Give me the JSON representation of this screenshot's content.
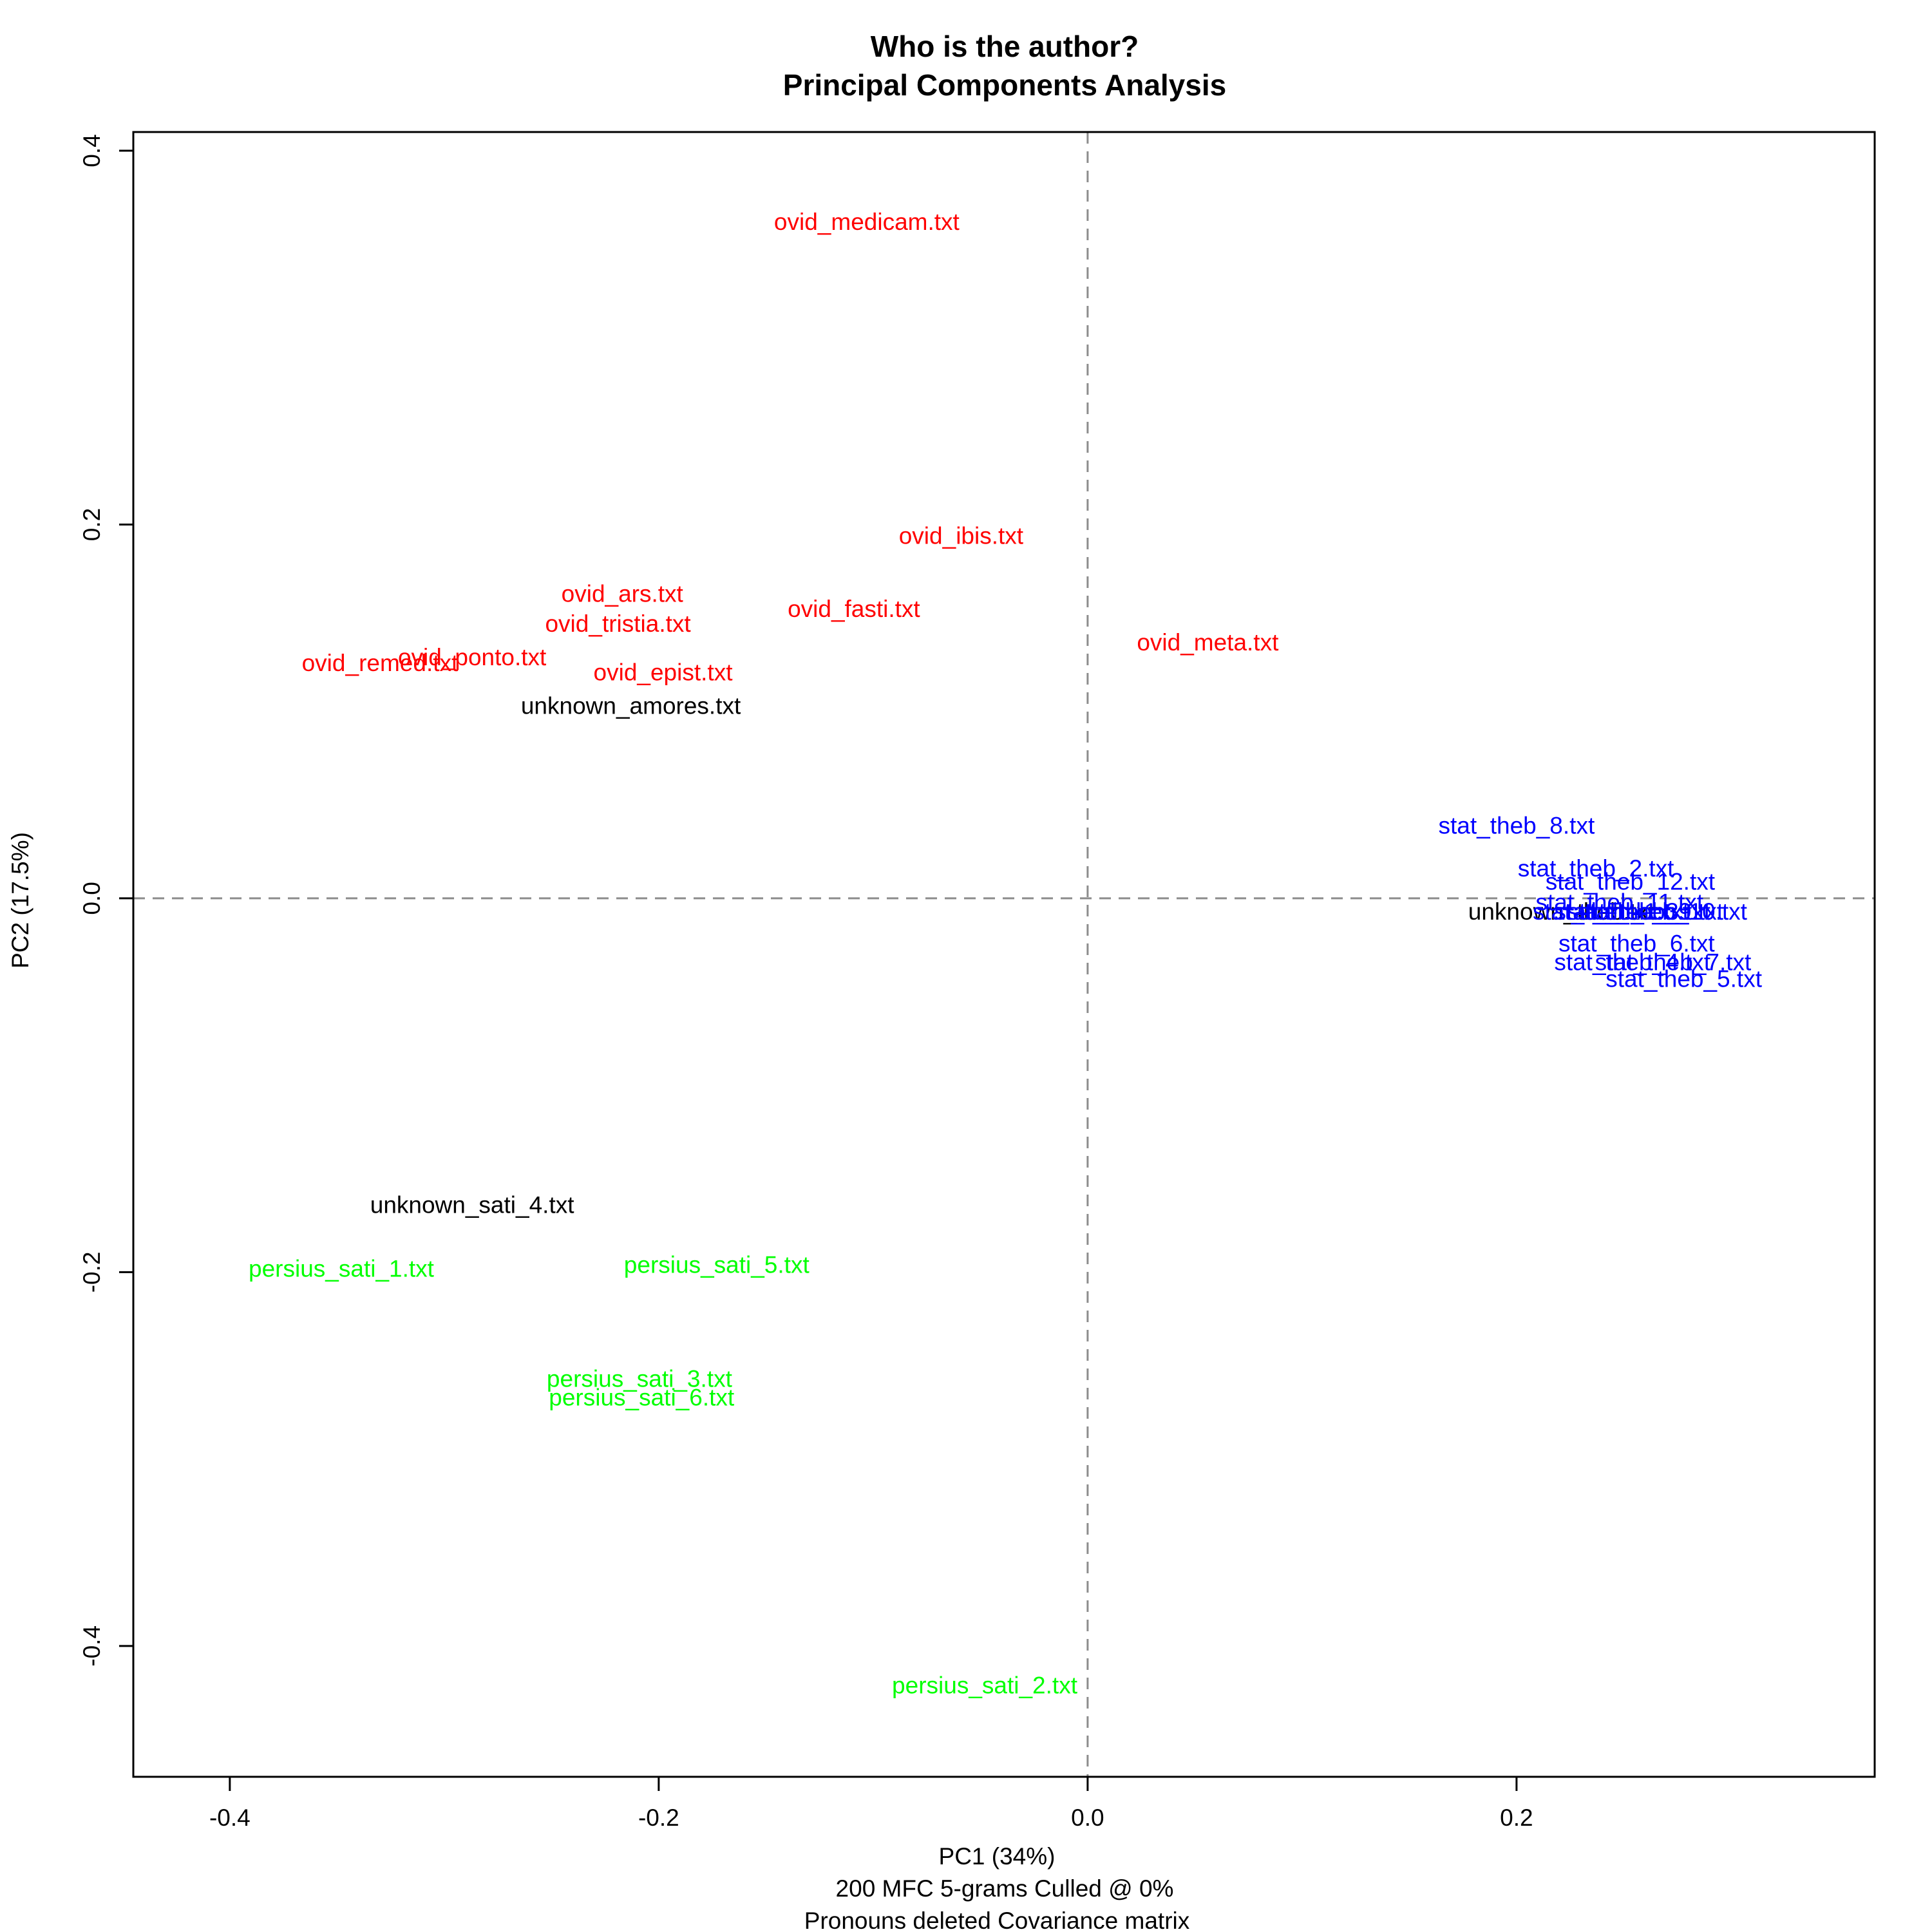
{
  "chart_data": {
    "type": "scatter",
    "title": "Who is the author?",
    "subtitle": "Principal Components Analysis",
    "xlabel": "PC1 (34%)",
    "xlabel_sub1": "200 MFC 5-grams Culled @ 0%",
    "xlabel_sub2": "Pronouns deleted Covariance matrix",
    "ylabel": "PC2 (17.5%)",
    "xlim": [
      -0.445,
      0.367
    ],
    "ylim": [
      -0.47,
      0.41
    ],
    "xticks": [
      {
        "value": -0.4,
        "label": "-0.4"
      },
      {
        "value": -0.2,
        "label": "-0.2"
      },
      {
        "value": 0.0,
        "label": "0.0"
      },
      {
        "value": 0.2,
        "label": "0.2"
      }
    ],
    "yticks": [
      {
        "value": -0.4,
        "label": "-0.4"
      },
      {
        "value": -0.2,
        "label": "-0.2"
      },
      {
        "value": 0.0,
        "label": "0.0"
      },
      {
        "value": 0.2,
        "label": "0.2"
      },
      {
        "value": 0.4,
        "label": "0.4"
      }
    ],
    "reference_lines": {
      "x": 0,
      "y": 0,
      "style": "dashed",
      "color": "#8c8c8c"
    },
    "grid": false,
    "groups": [
      {
        "color": "#ff0000",
        "points": [
          {
            "label": "ovid_medicam.txt",
            "x": -0.103,
            "y": 0.361
          },
          {
            "label": "ovid_ibis.txt",
            "x": -0.059,
            "y": 0.193
          },
          {
            "label": "ovid_ars.txt",
            "x": -0.217,
            "y": 0.162
          },
          {
            "label": "ovid_tristia.txt",
            "x": -0.219,
            "y": 0.146
          },
          {
            "label": "ovid_fasti.txt",
            "x": -0.109,
            "y": 0.154
          },
          {
            "label": "ovid_ponto.txt",
            "x": -0.287,
            "y": 0.128
          },
          {
            "label": "ovid_remed.txt",
            "x": -0.33,
            "y": 0.125
          },
          {
            "label": "ovid_epist.txt",
            "x": -0.198,
            "y": 0.12
          },
          {
            "label": "ovid_meta.txt",
            "x": 0.056,
            "y": 0.136
          }
        ]
      },
      {
        "color": "#000000",
        "points": [
          {
            "label": "unknown_amores.txt",
            "x": -0.213,
            "y": 0.102
          },
          {
            "label": "unknown_sati_4.txt",
            "x": -0.287,
            "y": -0.165
          },
          {
            "label": "unknown_theb.txt",
            "x": 0.221,
            "y": -0.008
          }
        ]
      },
      {
        "color": "#0000ff",
        "points": [
          {
            "label": "stat_theb_8.txt",
            "x": 0.2,
            "y": 0.038
          },
          {
            "label": "stat_theb_2.txt",
            "x": 0.237,
            "y": 0.015
          },
          {
            "label": "stat_theb_12.txt",
            "x": 0.253,
            "y": 0.008
          },
          {
            "label": "stat_theb_11.txt",
            "x": 0.248,
            "y": -0.003
          },
          {
            "label": "stat_theb_1.txt",
            "x": 0.244,
            "y": -0.008
          },
          {
            "label": "stat_theb_3.txt",
            "x": 0.254,
            "y": -0.008
          },
          {
            "label": "stat_theb_9.txt",
            "x": 0.26,
            "y": -0.008
          },
          {
            "label": "stat_theb_10.txt",
            "x": 0.268,
            "y": -0.008
          },
          {
            "label": "stat_theb_6.txt",
            "x": 0.256,
            "y": -0.025
          },
          {
            "label": "stat_theb_4.txt",
            "x": 0.254,
            "y": -0.035
          },
          {
            "label": "stat_theb_7.txt",
            "x": 0.273,
            "y": -0.035
          },
          {
            "label": "stat_theb_5.txt",
            "x": 0.278,
            "y": -0.044
          }
        ]
      },
      {
        "color": "#00ff00",
        "points": [
          {
            "label": "persius_sati_1.txt",
            "x": -0.348,
            "y": -0.199
          },
          {
            "label": "persius_sati_5.txt",
            "x": -0.173,
            "y": -0.197
          },
          {
            "label": "persius_sati_3.txt",
            "x": -0.209,
            "y": -0.258
          },
          {
            "label": "persius_sati_6.txt",
            "x": -0.208,
            "y": -0.268
          },
          {
            "label": "persius_sati_2.txt",
            "x": -0.048,
            "y": -0.422
          }
        ]
      }
    ]
  }
}
